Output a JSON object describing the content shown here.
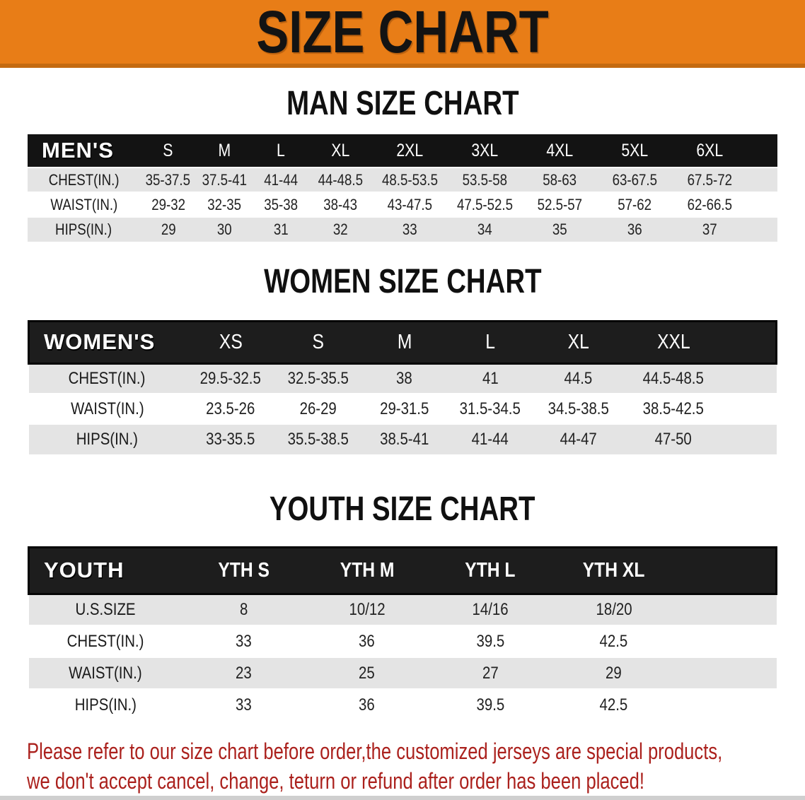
{
  "banner": {
    "title": "SIZE CHART"
  },
  "sections": [
    {
      "heading": "MAN SIZE CHART",
      "table": {
        "header_label": "MEN'S",
        "columns": [
          "S",
          "M",
          "L",
          "XL",
          "2XL",
          "3XL",
          "4XL",
          "5XL",
          "6XL"
        ],
        "rows": [
          {
            "label": "CHEST(IN.)",
            "values": [
              "35-37.5",
              "37.5-41",
              "41-44",
              "44-48.5",
              "48.5-53.5",
              "53.5-58",
              "58-63",
              "63-67.5",
              "67.5-72"
            ]
          },
          {
            "label": "WAIST(IN.)",
            "values": [
              "29-32",
              "32-35",
              "35-38",
              "38-43",
              "43-47.5",
              "47.5-52.5",
              "52.5-57",
              "57-62",
              "62-66.5"
            ]
          },
          {
            "label": "HIPS(IN.)",
            "values": [
              "29",
              "30",
              "31",
              "32",
              "33",
              "34",
              "35",
              "36",
              "37"
            ]
          }
        ]
      }
    },
    {
      "heading": "WOMEN SIZE CHART",
      "table": {
        "header_label": "WOMEN'S",
        "columns": [
          "XS",
          "S",
          "M",
          "L",
          "XL",
          "XXL"
        ],
        "rows": [
          {
            "label": "CHEST(IN.)",
            "values": [
              "29.5-32.5",
              "32.5-35.5",
              "38",
              "41",
              "44.5",
              "44.5-48.5"
            ]
          },
          {
            "label": "WAIST(IN.)",
            "values": [
              "23.5-26",
              "26-29",
              "29-31.5",
              "31.5-34.5",
              "34.5-38.5",
              "38.5-42.5"
            ]
          },
          {
            "label": "HIPS(IN.)",
            "values": [
              "33-35.5",
              "35.5-38.5",
              "38.5-41",
              "41-44",
              "44-47",
              "47-50"
            ]
          }
        ]
      }
    },
    {
      "heading": "YOUTH SIZE CHART",
      "table": {
        "header_label": "YOUTH",
        "columns": [
          "YTH S",
          "YTH M",
          "YTH L",
          "YTH XL"
        ],
        "rows": [
          {
            "label": "U.S.SIZE",
            "values": [
              "8",
              "10/12",
              "14/16",
              "18/20"
            ]
          },
          {
            "label": "CHEST(IN.)",
            "values": [
              "33",
              "36",
              "39.5",
              "42.5"
            ]
          },
          {
            "label": "WAIST(IN.)",
            "values": [
              "23",
              "25",
              "27",
              "29"
            ]
          },
          {
            "label": "HIPS(IN.)",
            "values": [
              "33",
              "36",
              "39.5",
              "42.5"
            ]
          }
        ]
      }
    }
  ],
  "disclaimer": {
    "line1": "Please refer to our size chart before order,the customized jerseys are special products,",
    "line2": "we don't accept cancel, change, teturn or refund after order has been placed!"
  },
  "colors": {
    "banner_orange": "#e87d17",
    "banner_edge": "#c46a10",
    "header_black": "#141414",
    "row_gray": "#e4e4e4",
    "disclaimer_red": "#ab211d"
  }
}
